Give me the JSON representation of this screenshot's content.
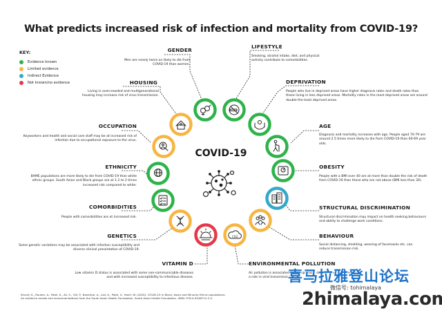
{
  "title": "What predicts increased risk of infection and mortality from COVID-19?",
  "center_label": "COVID-19",
  "key": {
    "title": "KEY:",
    "items": [
      {
        "label": "Evidence known",
        "color": "#2db34a"
      },
      {
        "label": "Limited evidence",
        "color": "#f7b541"
      },
      {
        "label": "Indirect Evidence",
        "color": "#35a8c9"
      },
      {
        "label": "Not known/no evidence",
        "color": "#e4394a"
      }
    ]
  },
  "factors": {
    "gender": {
      "heading": "GENDER",
      "text": "Men are nearly twice as likely to die from COVID-19 than women.",
      "evidence": "green",
      "icon": "gender-icon"
    },
    "lifestyle": {
      "heading": "LIFESTYLE",
      "text": "Smoking, alcohol intake, diet, and physical activity contribute to comorbidities.",
      "evidence": "green",
      "icon": "no-smoking-icon"
    },
    "housing": {
      "heading": "HOUSING",
      "text": "Living in overcrowded and multigenerational housing may increase risk of virus transmission.",
      "evidence": "orange",
      "icon": "house-icon"
    },
    "deprivation": {
      "heading": "DEPRIVATION",
      "text": "People who live in deprived areas have higher diagnosis rates and death rates than those living in less deprived areas. Mortality rates in the most deprived areas are around double the least deprived areas.",
      "evidence": "green",
      "icon": "hands-icon"
    },
    "occupation": {
      "heading": "OCCUPATION",
      "text": "Keyworkers and health and social care staff may be at increased risk of infection due to occupational exposure to the virus.",
      "evidence": "orange",
      "icon": "worker-search-icon"
    },
    "age": {
      "heading": "AGE",
      "text": "Diagnosis and mortality increases with age. People aged 70-79 are around 2.5 times more likely to die from COVID-19 than 60-69 year olds.",
      "evidence": "green",
      "icon": "elderly-person-icon"
    },
    "ethnicity": {
      "heading": "ETHNICITY",
      "text": "BAME populations are more likely to die from COVID-19 than white ethnic groups. South Asian and Black groups are at 1.2 to 2 times increased risk compared to white.",
      "evidence": "green",
      "icon": "globe-person-icon"
    },
    "obesity": {
      "heading": "OBESITY",
      "text": "People with a BMI over 40 are at more than double the risk of death from COVID-19 than those who are not obese (BMI less than 30).",
      "evidence": "green",
      "icon": "scale-icon"
    },
    "comorbidities": {
      "heading": "COMORBIDITIES",
      "text": "People with comorbidities are at increased risk.",
      "evidence": "green",
      "icon": "checklist-icon"
    },
    "structural": {
      "heading": "STRUCTURAL DISCRIMINATION",
      "text": "Structural discrimination may impact on health seeking behaviours and ability to challenge work conditions.",
      "evidence": "blue",
      "icon": "buildings-icon"
    },
    "genetics": {
      "heading": "GENETICS",
      "text": "Some genetic variations may be associated with infection susceptibility and diverse clinical presentation of COVID-19.",
      "evidence": "orange",
      "icon": "dna-icon"
    },
    "behaviour": {
      "heading": "BEHAVIOUR",
      "text": "Social distancing, shielding, wearing of facemasks etc. can reduce transmission risk.",
      "evidence": "orange",
      "icon": "group-people-icon"
    },
    "vitamin_d": {
      "heading": "VITAMIN D",
      "text": "Low vitamin D status is associated with some non-communicable diseases and with increased susceptibility to infectious disease.",
      "evidence": "red",
      "icon": "sunrise-icon"
    },
    "environmental": {
      "heading": "ENVIRONMENTAL POLLUTION",
      "text": "Air pollution is associated with respiratory disease and may play a role in viral transmission.",
      "evidence": "orange",
      "icon": "cloud-co2-icon"
    }
  },
  "footer": {
    "line1": "Khunti, K., Routen, A., Patel, K., Ali, S., Gill, P., Banerjee, A., Lad, K., Patel, V., Hanif, W. (2020). COVID-19 in Black, Asian and Minority Ethnic populations:",
    "line2": "An evidence review and recommendations from the South Asian Health Foundation. South Asian Health Foundation. ISBN: 978-0-9546712-2-5."
  },
  "watermark": {
    "chinese": "喜马拉雅登山论坛",
    "wechat": "微信号: tohimalaya",
    "url": "2himalaya.com"
  },
  "colors": {
    "green": "#2db34a",
    "orange": "#f7b541",
    "blue": "#35a8c9",
    "red": "#e4394a"
  }
}
